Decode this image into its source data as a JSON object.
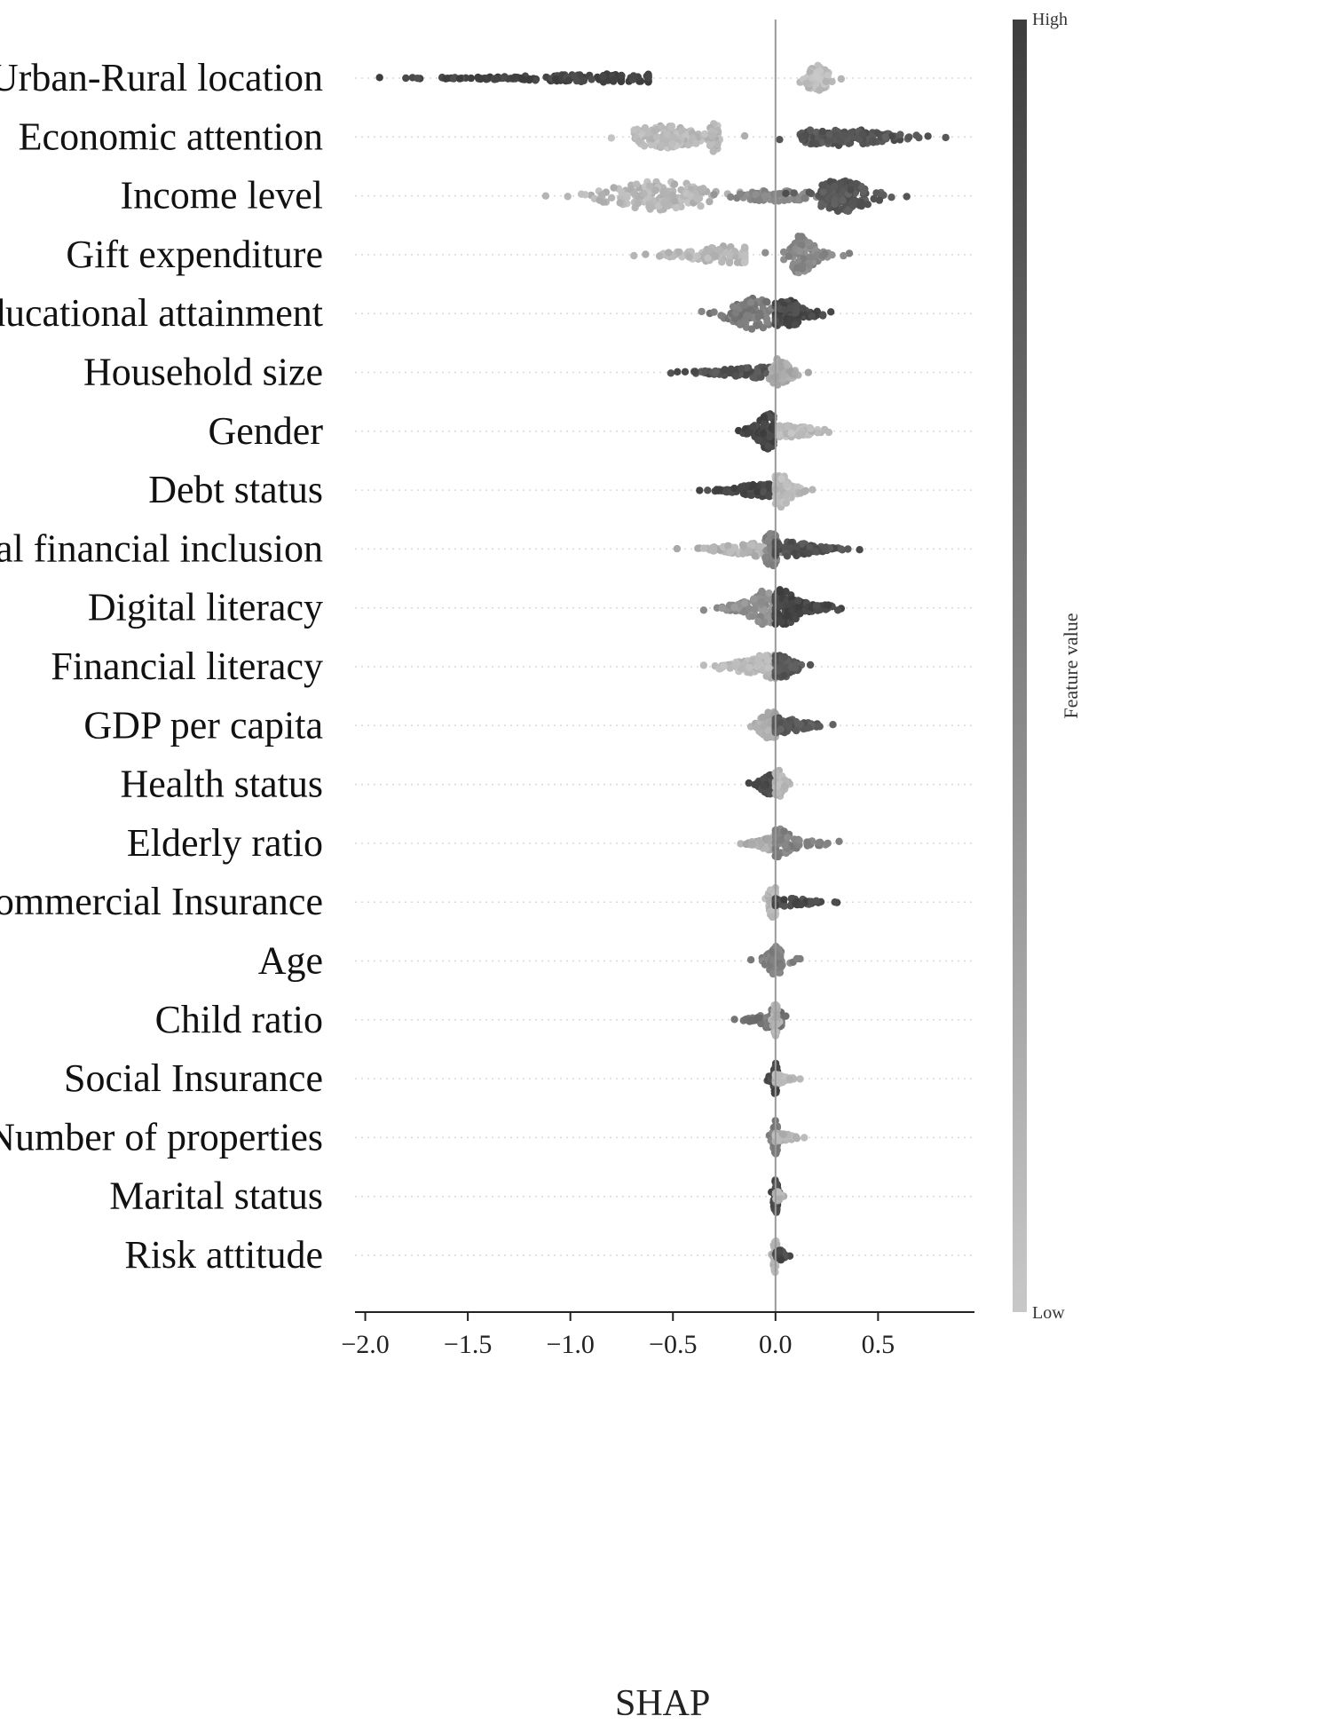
{
  "chart_data": {
    "type": "scatter",
    "subtype": "shap-beeswarm",
    "xlabel": "SHAP",
    "xlim": [
      -2.05,
      0.97
    ],
    "xticks": [
      -2.0,
      -1.5,
      -1.0,
      -0.5,
      0.0,
      0.5
    ],
    "xtick_labels": [
      "−2.0",
      "−1.5",
      "−1.0",
      "−0.5",
      "0.0",
      "0.5"
    ],
    "colorbar": {
      "title": "Feature value",
      "high_label": "High",
      "low_label": "Low",
      "high_color": "#3d3d3d",
      "low_color": "#c8c8c8"
    },
    "features": [
      {
        "name": "Urban-Rural location",
        "segments": [
          {
            "min": -1.93,
            "max": -0.62,
            "peak": -0.75,
            "spread": 0.35,
            "value": 0.95,
            "n": 150,
            "maxh": 0.16
          },
          {
            "min": 0.12,
            "max": 0.32,
            "peak": 0.2,
            "spread": 0.05,
            "value": 0.08,
            "n": 90,
            "maxh": 0.48
          }
        ]
      },
      {
        "name": "Economic attention",
        "segments": [
          {
            "min": -0.8,
            "max": -0.15,
            "peak": -0.55,
            "spread": 0.15,
            "value": 0.1,
            "n": 150,
            "maxh": 0.42
          },
          {
            "min": -0.35,
            "max": -0.28,
            "peak": -0.3,
            "spread": 0.02,
            "value": 0.12,
            "n": 40,
            "maxh": 0.6
          },
          {
            "min": 0.02,
            "max": 0.83,
            "peak": 0.3,
            "spread": 0.18,
            "value": 0.82,
            "n": 160,
            "maxh": 0.32
          }
        ]
      },
      {
        "name": "Income level",
        "segments": [
          {
            "min": -1.12,
            "max": -0.1,
            "peak": -0.55,
            "spread": 0.2,
            "value": 0.12,
            "n": 170,
            "maxh": 0.55
          },
          {
            "min": -0.3,
            "max": 0.2,
            "peak": 0.0,
            "spread": 0.15,
            "value": 0.45,
            "n": 80,
            "maxh": 0.2
          },
          {
            "min": 0.05,
            "max": 0.64,
            "peak": 0.32,
            "spread": 0.1,
            "value": 0.8,
            "n": 140,
            "maxh": 0.62
          }
        ]
      },
      {
        "name": "Gift expenditure",
        "segments": [
          {
            "min": -0.69,
            "max": -0.15,
            "peak": -0.2,
            "spread": 0.15,
            "value": 0.12,
            "n": 120,
            "maxh": 0.34
          },
          {
            "min": -0.05,
            "max": 0.36,
            "peak": 0.12,
            "spread": 0.05,
            "value": 0.45,
            "n": 110,
            "maxh": 0.7
          }
        ]
      },
      {
        "name": "Educational attainment",
        "segments": [
          {
            "min": -0.36,
            "max": 0.0,
            "peak": -0.1,
            "spread": 0.08,
            "value": 0.55,
            "n": 110,
            "maxh": 0.6
          },
          {
            "min": 0.0,
            "max": 0.27,
            "peak": 0.05,
            "spread": 0.06,
            "value": 0.9,
            "n": 110,
            "maxh": 0.55
          }
        ]
      },
      {
        "name": "Household size",
        "segments": [
          {
            "min": -0.51,
            "max": -0.02,
            "peak": -0.05,
            "spread": 0.15,
            "value": 0.85,
            "n": 110,
            "maxh": 0.22
          },
          {
            "min": -0.03,
            "max": 0.16,
            "peak": 0.02,
            "spread": 0.04,
            "value": 0.2,
            "n": 80,
            "maxh": 0.55
          }
        ]
      },
      {
        "name": "Gender",
        "segments": [
          {
            "min": -0.18,
            "max": -0.01,
            "peak": -0.03,
            "spread": 0.04,
            "value": 0.95,
            "n": 100,
            "maxh": 0.7
          },
          {
            "min": 0.02,
            "max": 0.26,
            "peak": 0.05,
            "spread": 0.1,
            "value": 0.1,
            "n": 90,
            "maxh": 0.22
          }
        ]
      },
      {
        "name": "Debt status",
        "segments": [
          {
            "min": -0.37,
            "max": -0.03,
            "peak": -0.05,
            "spread": 0.1,
            "value": 0.92,
            "n": 110,
            "maxh": 0.24
          },
          {
            "min": 0.0,
            "max": 0.18,
            "peak": 0.02,
            "spread": 0.04,
            "value": 0.1,
            "n": 80,
            "maxh": 0.65
          }
        ]
      },
      {
        "name": "Digital financial inclusion",
        "segments": [
          {
            "min": -0.48,
            "max": 0.0,
            "peak": -0.02,
            "spread": 0.15,
            "value": 0.15,
            "n": 110,
            "maxh": 0.3
          },
          {
            "min": -0.05,
            "max": 0.03,
            "peak": -0.02,
            "spread": 0.03,
            "value": 0.5,
            "n": 60,
            "maxh": 0.65
          },
          {
            "min": 0.0,
            "max": 0.41,
            "peak": 0.05,
            "spread": 0.1,
            "value": 0.85,
            "n": 90,
            "maxh": 0.3
          }
        ]
      },
      {
        "name": "Digital literacy",
        "segments": [
          {
            "min": -0.35,
            "max": 0.0,
            "peak": -0.05,
            "spread": 0.06,
            "value": 0.4,
            "n": 110,
            "maxh": 0.65
          },
          {
            "min": 0.0,
            "max": 0.32,
            "peak": 0.03,
            "spread": 0.06,
            "value": 0.95,
            "n": 130,
            "maxh": 0.7
          }
        ]
      },
      {
        "name": "Financial literacy",
        "segments": [
          {
            "min": -0.35,
            "max": 0.0,
            "peak": -0.03,
            "spread": 0.1,
            "value": 0.12,
            "n": 100,
            "maxh": 0.45
          },
          {
            "min": 0.0,
            "max": 0.17,
            "peak": 0.02,
            "spread": 0.05,
            "value": 0.8,
            "n": 70,
            "maxh": 0.45
          }
        ]
      },
      {
        "name": "GDP per capita",
        "segments": [
          {
            "min": -0.12,
            "max": 0.0,
            "peak": -0.02,
            "spread": 0.04,
            "value": 0.2,
            "n": 70,
            "maxh": 0.55
          },
          {
            "min": 0.0,
            "max": 0.28,
            "peak": 0.03,
            "spread": 0.08,
            "value": 0.8,
            "n": 80,
            "maxh": 0.3
          }
        ]
      },
      {
        "name": "Health status",
        "segments": [
          {
            "min": -0.13,
            "max": 0.0,
            "peak": -0.03,
            "spread": 0.03,
            "value": 0.92,
            "n": 60,
            "maxh": 0.4
          },
          {
            "min": 0.0,
            "max": 0.07,
            "peak": 0.01,
            "spread": 0.02,
            "value": 0.12,
            "n": 50,
            "maxh": 0.6
          }
        ]
      },
      {
        "name": "Elderly ratio",
        "segments": [
          {
            "min": -0.17,
            "max": 0.0,
            "peak": -0.01,
            "spread": 0.04,
            "value": 0.2,
            "n": 60,
            "maxh": 0.35
          },
          {
            "min": 0.0,
            "max": 0.31,
            "peak": 0.02,
            "spread": 0.05,
            "value": 0.5,
            "n": 70,
            "maxh": 0.55
          }
        ]
      },
      {
        "name": "Commercial Insurance",
        "segments": [
          {
            "min": -0.05,
            "max": 0.0,
            "peak": -0.01,
            "spread": 0.02,
            "value": 0.12,
            "n": 50,
            "maxh": 0.6
          },
          {
            "min": 0.0,
            "max": 0.3,
            "peak": 0.04,
            "spread": 0.1,
            "value": 0.9,
            "n": 60,
            "maxh": 0.15
          }
        ]
      },
      {
        "name": "Age",
        "segments": [
          {
            "min": -0.12,
            "max": 0.12,
            "peak": 0.0,
            "spread": 0.03,
            "value": 0.5,
            "n": 90,
            "maxh": 0.55
          }
        ]
      },
      {
        "name": "Child ratio",
        "segments": [
          {
            "min": -0.2,
            "max": 0.05,
            "peak": -0.01,
            "spread": 0.04,
            "value": 0.6,
            "n": 80,
            "maxh": 0.4
          },
          {
            "min": -0.02,
            "max": 0.02,
            "peak": 0.0,
            "spread": 0.01,
            "value": 0.15,
            "n": 40,
            "maxh": 0.65
          }
        ]
      },
      {
        "name": "Social Insurance",
        "segments": [
          {
            "min": -0.04,
            "max": 0.01,
            "peak": 0.0,
            "spread": 0.01,
            "value": 0.92,
            "n": 50,
            "maxh": 0.6
          },
          {
            "min": 0.0,
            "max": 0.12,
            "peak": 0.01,
            "spread": 0.03,
            "value": 0.12,
            "n": 40,
            "maxh": 0.2
          }
        ]
      },
      {
        "name": "Number of properties",
        "segments": [
          {
            "min": -0.03,
            "max": 0.03,
            "peak": 0.0,
            "spread": 0.01,
            "value": 0.55,
            "n": 50,
            "maxh": 0.65
          },
          {
            "min": 0.0,
            "max": 0.14,
            "peak": 0.02,
            "spread": 0.04,
            "value": 0.15,
            "n": 40,
            "maxh": 0.18
          }
        ]
      },
      {
        "name": "Marital status",
        "segments": [
          {
            "min": -0.02,
            "max": 0.02,
            "peak": 0.0,
            "spread": 0.01,
            "value": 0.9,
            "n": 50,
            "maxh": 0.65
          },
          {
            "min": 0.0,
            "max": 0.04,
            "peak": 0.01,
            "spread": 0.01,
            "value": 0.15,
            "n": 20,
            "maxh": 0.2
          }
        ]
      },
      {
        "name": "Risk attitude",
        "segments": [
          {
            "min": -0.02,
            "max": 0.02,
            "peak": 0.0,
            "spread": 0.01,
            "value": 0.15,
            "n": 40,
            "maxh": 0.65
          },
          {
            "min": 0.0,
            "max": 0.07,
            "peak": 0.02,
            "spread": 0.02,
            "value": 0.9,
            "n": 30,
            "maxh": 0.2
          }
        ]
      }
    ]
  }
}
